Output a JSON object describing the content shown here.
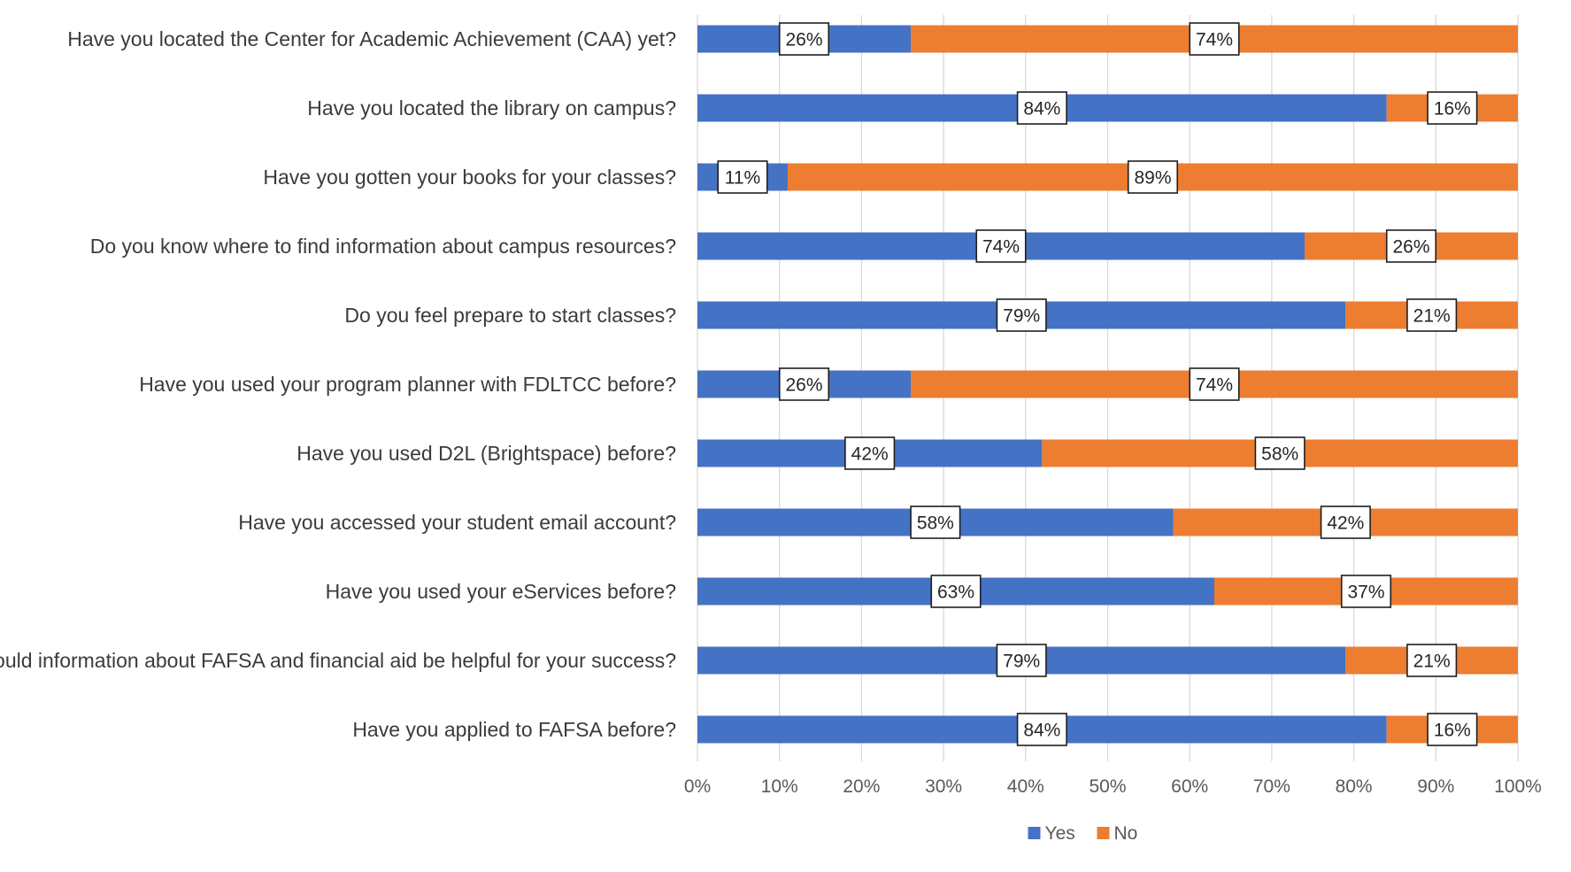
{
  "chart_data": {
    "type": "bar",
    "orientation": "horizontal",
    "stacked": "percent",
    "categories": [
      "Have you located the Center for Academic Achievement (CAA) yet?",
      "Have you located the library on campus?",
      "Have you gotten your books for your classes?",
      "Do you know where to find information about campus resources?",
      "Do you feel prepare to start classes?",
      "Have you used your program planner with FDLTCC before?",
      "Have you used D2L (Brightspace) before?",
      "Have you accessed your student email account?",
      "Have you used your eServices before?",
      "Would information about FAFSA and financial aid be helpful for your success?",
      "Have you applied to FAFSA before?"
    ],
    "series": [
      {
        "name": "Yes",
        "color": "#4472c4",
        "values": [
          26,
          84,
          11,
          74,
          79,
          26,
          42,
          58,
          63,
          79,
          84
        ],
        "labels": [
          "26%",
          "84%",
          "11%",
          "74%",
          "79%",
          "26%",
          "42%",
          "58%",
          "63%",
          "79%",
          "84%"
        ]
      },
      {
        "name": "No",
        "color": "#ed7d31",
        "values": [
          74,
          16,
          89,
          26,
          21,
          74,
          58,
          42,
          37,
          21,
          16
        ],
        "labels": [
          "74%",
          "16%",
          "89%",
          "26%",
          "21%",
          "74%",
          "58%",
          "42%",
          "37%",
          "21%",
          "16%"
        ]
      }
    ],
    "xlim": [
      0,
      100
    ],
    "xticks": [
      "0%",
      "10%",
      "20%",
      "30%",
      "40%",
      "50%",
      "60%",
      "70%",
      "80%",
      "90%",
      "100%"
    ],
    "grid": "vertical",
    "gridline_color": "#d9d9d9",
    "legend_position": "bottom",
    "title": "",
    "xlabel": "",
    "ylabel": ""
  }
}
